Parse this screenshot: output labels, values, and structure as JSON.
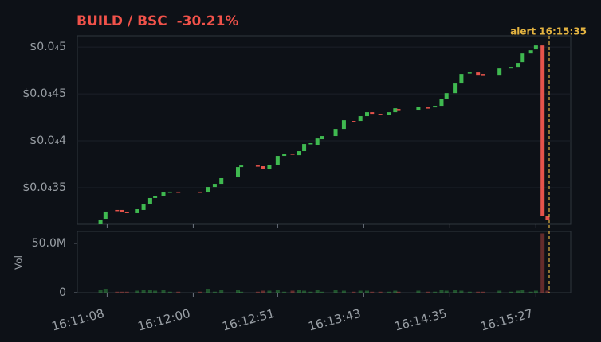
{
  "chart_data": {
    "type": "candlestick",
    "title": "BUILD / BSC  -30.21%",
    "volume_label": "Vol",
    "up_color": "#3fb950",
    "down_color": "#e5534b",
    "grid": true,
    "x": [
      "16:11:04",
      "16:11:07",
      "16:11:14",
      "16:11:17",
      "16:11:20",
      "16:11:26",
      "16:11:30",
      "16:11:34",
      "16:11:37",
      "16:11:42",
      "16:11:46",
      "16:11:51",
      "16:12:04",
      "16:12:09",
      "16:12:13",
      "16:12:17",
      "16:12:27",
      "16:12:29",
      "16:12:39",
      "16:12:42",
      "16:12:46",
      "16:12:51",
      "16:12:55",
      "16:13:00",
      "16:13:04",
      "16:13:07",
      "16:13:11",
      "16:13:15",
      "16:13:18",
      "16:13:26",
      "16:13:31",
      "16:13:37",
      "16:13:41",
      "16:13:45",
      "16:13:48",
      "16:13:53",
      "16:13:58",
      "16:14:02",
      "16:14:04",
      "16:14:16",
      "16:14:22",
      "16:14:26",
      "16:14:30",
      "16:14:33",
      "16:14:38",
      "16:14:42",
      "16:14:47",
      "16:14:52",
      "16:14:55",
      "16:15:05",
      "16:15:12",
      "16:15:16",
      "16:15:19",
      "16:15:24",
      "16:15:27",
      "16:15:31",
      "16:15:34"
    ],
    "open": [
      3.11e-06,
      3.169e-06,
      3.263e-06,
      3.263e-06,
      3.246e-06,
      3.229e-06,
      3.263e-06,
      3.322e-06,
      3.39e-06,
      3.407e-06,
      3.449e-06,
      3.458e-06,
      3.458e-06,
      3.449e-06,
      3.508e-06,
      3.542e-06,
      3.61e-06,
      3.72e-06,
      3.737e-06,
      3.729e-06,
      3.695e-06,
      3.746e-06,
      3.839e-06,
      3.864e-06,
      3.847e-06,
      3.89e-06,
      3.966e-06,
      3.958e-06,
      4.017e-06,
      4.051e-06,
      4.127e-06,
      4.212e-06,
      4.212e-06,
      4.263e-06,
      4.305e-06,
      4.288e-06,
      4.28e-06,
      4.305e-06,
      4.339e-06,
      4.331e-06,
      4.356e-06,
      4.356e-06,
      4.373e-06,
      4.449e-06,
      4.508e-06,
      4.619e-06,
      4.72e-06,
      4.729e-06,
      4.712e-06,
      4.703e-06,
      4.771e-06,
      4.788e-06,
      4.839e-06,
      4.932e-06,
      4.975e-06,
      5.017e-06,
      3.195e-06
    ],
    "close": [
      3.161e-06,
      3.246e-06,
      3.254e-06,
      3.237e-06,
      3.229e-06,
      3.271e-06,
      3.322e-06,
      3.39e-06,
      3.407e-06,
      3.449e-06,
      3.458e-06,
      3.454e-06,
      3.449e-06,
      3.508e-06,
      3.542e-06,
      3.602e-06,
      3.72e-06,
      3.737e-06,
      3.729e-06,
      3.703e-06,
      3.746e-06,
      3.839e-06,
      3.864e-06,
      3.856e-06,
      3.89e-06,
      3.966e-06,
      3.975e-06,
      4.025e-06,
      4.051e-06,
      4.127e-06,
      4.22e-06,
      4.203e-06,
      4.263e-06,
      4.305e-06,
      4.288e-06,
      4.28e-06,
      4.305e-06,
      4.347e-06,
      4.335e-06,
      4.364e-06,
      4.352e-06,
      4.373e-06,
      4.449e-06,
      4.508e-06,
      4.619e-06,
      4.712e-06,
      4.729e-06,
      4.703e-06,
      4.703e-06,
      4.771e-06,
      4.788e-06,
      4.831e-06,
      4.932e-06,
      4.966e-06,
      5.017e-06,
      3.195e-06,
      3.153e-06
    ],
    "volume": [
      3000000,
      4000000,
      1000000,
      1000000,
      1000000,
      2000000,
      3000000,
      3000000,
      2000000,
      3000000,
      1000000,
      1000000,
      1000000,
      4000000,
      1000000,
      3000000,
      3000000,
      1000000,
      1000000,
      2000000,
      2000000,
      3000000,
      1000000,
      2000000,
      3000000,
      2000000,
      1000000,
      3000000,
      1000000,
      3000000,
      2000000,
      1000000,
      2000000,
      2000000,
      1000000,
      1000000,
      1000000,
      2000000,
      1000000,
      2000000,
      1000000,
      1000000,
      3000000,
      2000000,
      3000000,
      2000000,
      1000000,
      1000000,
      1000000,
      2000000,
      1000000,
      2000000,
      3000000,
      1000000,
      2000000,
      60000000,
      2000000
    ],
    "xlim": [
      "16:10:50",
      "16:15:48"
    ],
    "xticks": [
      "16:11:08",
      "16:12:00",
      "16:12:51",
      "16:13:43",
      "16:14:35",
      "16:15:27"
    ],
    "ylim": [
      3.11e-06,
      5.12e-06
    ],
    "yticks": [
      {
        "value": 3.5e-06,
        "label": "$0.0₄35"
      },
      {
        "value": 4e-06,
        "label": "$0.0₄4"
      },
      {
        "value": 4.5e-06,
        "label": "$0.0₄45"
      },
      {
        "value": 5e-06,
        "label": "$0.0₄5"
      }
    ],
    "volume_lim": [
      0,
      62000000
    ],
    "volume_ticks": [
      0,
      {
        "value": 50000000,
        "label": "50.0M"
      }
    ],
    "annotation": {
      "text": "alert 16:15:35",
      "x": "16:15:35",
      "color": "#e3b341"
    }
  }
}
